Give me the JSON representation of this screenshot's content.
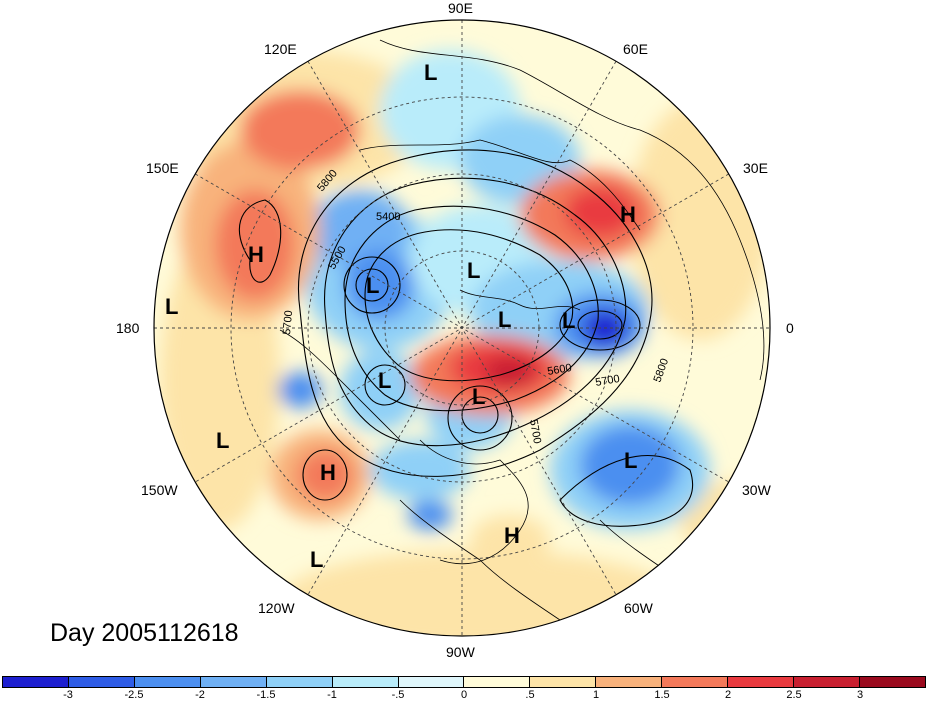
{
  "title": "Day 2005112618",
  "lon_labels": [
    "90E",
    "120E",
    "60E",
    "150E",
    "30E",
    "180",
    "0",
    "150W",
    "30W",
    "120W",
    "60W",
    "90W"
  ],
  "contour_labels": [
    "5800",
    "5400",
    "5500",
    "5700",
    "5600",
    "5700",
    "5800",
    "5700"
  ],
  "system_markers": [
    {
      "type": "L",
      "name": "low-siberia"
    },
    {
      "type": "H",
      "name": "high-kamchatka"
    },
    {
      "type": "L",
      "name": "low-pacific-west"
    },
    {
      "type": "L",
      "name": "low-east-siberia"
    },
    {
      "type": "L",
      "name": "low-arctic"
    },
    {
      "type": "L",
      "name": "low-pole"
    },
    {
      "type": "L",
      "name": "low-scandinavia"
    },
    {
      "type": "H",
      "name": "high-europe"
    },
    {
      "type": "L",
      "name": "low-alaska"
    },
    {
      "type": "L",
      "name": "low-hudson"
    },
    {
      "type": "L",
      "name": "low-pacific-mid"
    },
    {
      "type": "H",
      "name": "high-pacific-east"
    },
    {
      "type": "L",
      "name": "low-pacific-south"
    },
    {
      "type": "L",
      "name": "low-atlantic"
    },
    {
      "type": "H",
      "name": "high-caribbean"
    }
  ],
  "colorbar": {
    "ticks": [
      "-3",
      "-2.5",
      "-2",
      "-1.5",
      "-1",
      "-.5",
      "0",
      ".5",
      "1",
      "1.5",
      "2",
      "2.5",
      "3"
    ],
    "colors": [
      "#1d1fd0",
      "#2e5ce6",
      "#4c8ff0",
      "#6fb0f4",
      "#8fd0f7",
      "#b9ecfa",
      "#dff6fb",
      "#fffbd9",
      "#fde4a8",
      "#f8b27c",
      "#f3795a",
      "#e93a3f",
      "#c81f30",
      "#9a0a1e"
    ]
  }
}
